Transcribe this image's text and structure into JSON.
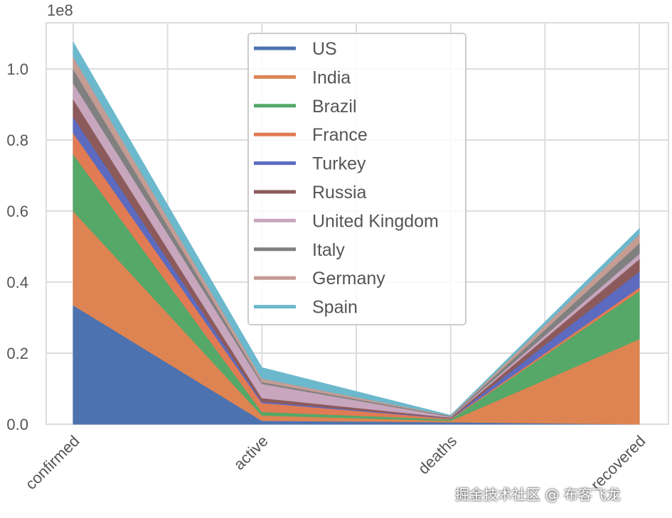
{
  "chart_data": {
    "type": "area",
    "stacked": true,
    "categories": [
      "confirmed",
      "active",
      "deaths",
      "recovered"
    ],
    "offset_label": "1e8",
    "y_ticks": [
      "0.0",
      "0.2",
      "0.4",
      "0.6",
      "0.8",
      "1.0"
    ],
    "ylim": [
      0,
      1.12
    ],
    "grid": true,
    "legend_position": "upper center",
    "series": [
      {
        "name": "US",
        "color": "#4c72b0",
        "values": [
          0.335,
          0.01,
          0.006,
          0.0
        ]
      },
      {
        "name": "India",
        "color": "#dd8452",
        "values": [
          0.265,
          0.015,
          0.004,
          0.24
        ]
      },
      {
        "name": "Brazil",
        "color": "#55a868",
        "values": [
          0.16,
          0.01,
          0.004,
          0.135
        ]
      },
      {
        "name": "France",
        "color": "#e07b54",
        "values": [
          0.06,
          0.025,
          0.002,
          0.01
        ]
      },
      {
        "name": "Turkey",
        "color": "#5c6bc0",
        "values": [
          0.045,
          0.004,
          0.001,
          0.045
        ]
      },
      {
        "name": "Russia",
        "color": "#8c5a5a",
        "values": [
          0.05,
          0.01,
          0.002,
          0.035
        ]
      },
      {
        "name": "United Kingdom",
        "color": "#c7a6be",
        "values": [
          0.045,
          0.04,
          0.002,
          0.015
        ]
      },
      {
        "name": "Italy",
        "color": "#808080",
        "values": [
          0.04,
          0.005,
          0.002,
          0.03
        ]
      },
      {
        "name": "Germany",
        "color": "#c49c94",
        "values": [
          0.035,
          0.01,
          0.001,
          0.025
        ]
      },
      {
        "name": "Spain",
        "color": "#6cb8cc",
        "values": [
          0.04,
          0.03,
          0.001,
          0.015
        ]
      }
    ]
  },
  "watermark": "掘金技术社区 @ 布客飞龙"
}
